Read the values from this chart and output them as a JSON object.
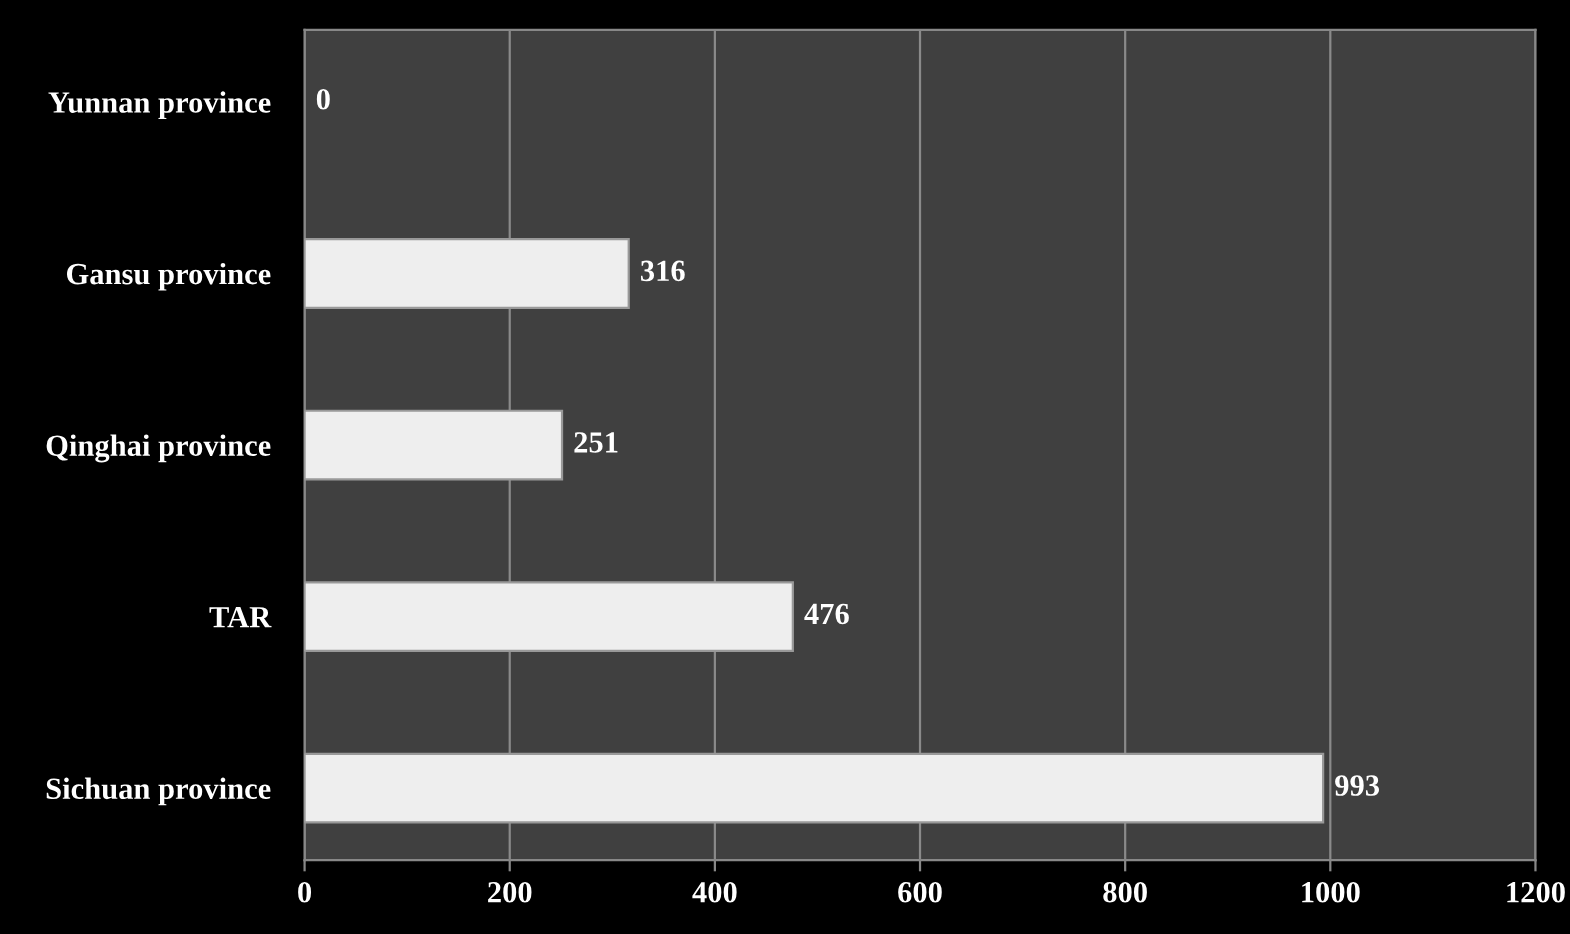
{
  "chart_data": {
    "type": "bar",
    "orientation": "horizontal",
    "categories": [
      "Yunnan province",
      "Gansu province",
      "Qinghai province",
      "TAR",
      "Sichuan province"
    ],
    "values": [
      0,
      316,
      251,
      476,
      993
    ],
    "color": "#eeeeee",
    "xlim": [
      0,
      1200
    ],
    "xticks": [
      0,
      200,
      400,
      600,
      800,
      1000,
      1200
    ],
    "grid": "x",
    "data_labels": true
  }
}
